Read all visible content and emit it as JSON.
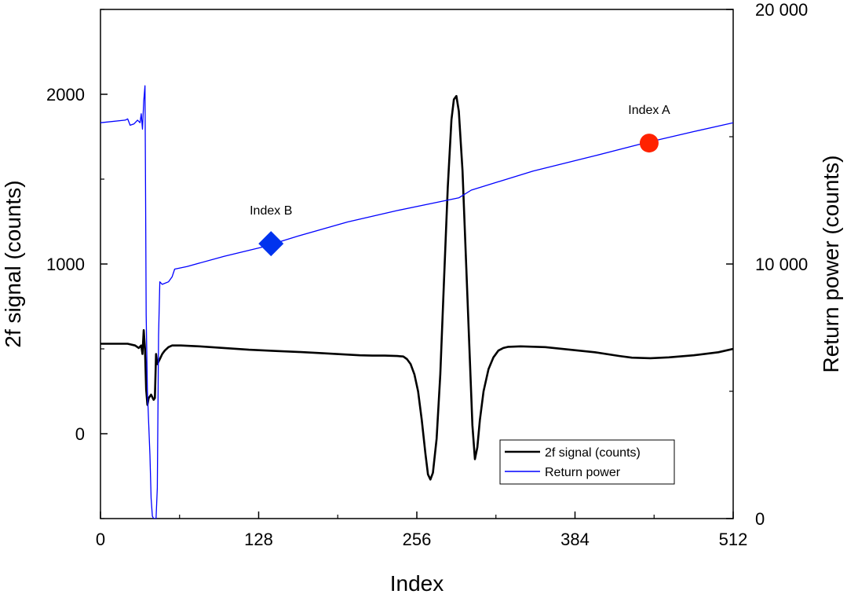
{
  "chart_data": {
    "type": "line",
    "xlabel": "Index",
    "ylabel_left": "2f signal (counts)",
    "ylabel_right": "Return power (counts)",
    "xlim": [
      0,
      512
    ],
    "ylim_left": [
      -500,
      2500
    ],
    "ylim_right": [
      0,
      20000
    ],
    "x_ticks": [
      0,
      128,
      256,
      384,
      512
    ],
    "x_tick_labels": [
      "0",
      "128",
      "256",
      "384",
      "512"
    ],
    "y_left_ticks": [
      0,
      1000,
      2000
    ],
    "y_left_tick_labels": [
      "0",
      "1000",
      "2000"
    ],
    "y_right_ticks": [
      0,
      10000,
      20000
    ],
    "y_right_tick_labels": [
      "0",
      "10 000",
      "20 000"
    ],
    "grid": false,
    "legend_position": "bottom-right",
    "series": [
      {
        "name": "2f signal (counts)",
        "axis": "left",
        "color": "#000000",
        "points": [
          [
            0,
            530
          ],
          [
            22,
            530
          ],
          [
            28,
            520
          ],
          [
            31,
            505
          ],
          [
            33,
            520
          ],
          [
            34,
            470
          ],
          [
            35,
            610
          ],
          [
            36,
            500
          ],
          [
            37,
            260
          ],
          [
            38,
            170
          ],
          [
            39,
            210
          ],
          [
            41,
            230
          ],
          [
            43,
            200
          ],
          [
            44,
            210
          ],
          [
            45,
            470
          ],
          [
            46,
            410
          ],
          [
            48,
            440
          ],
          [
            50,
            470
          ],
          [
            52,
            490
          ],
          [
            55,
            510
          ],
          [
            58,
            520
          ],
          [
            65,
            520
          ],
          [
            80,
            515
          ],
          [
            100,
            505
          ],
          [
            120,
            495
          ],
          [
            140,
            488
          ],
          [
            160,
            482
          ],
          [
            180,
            474
          ],
          [
            200,
            466
          ],
          [
            210,
            462
          ],
          [
            220,
            460
          ],
          [
            230,
            460
          ],
          [
            240,
            458
          ],
          [
            245,
            455
          ],
          [
            248,
            440
          ],
          [
            251,
            410
          ],
          [
            254,
            350
          ],
          [
            257,
            250
          ],
          [
            260,
            80
          ],
          [
            263,
            -120
          ],
          [
            265,
            -240
          ],
          [
            267,
            -270
          ],
          [
            269,
            -230
          ],
          [
            272,
            -30
          ],
          [
            275,
            350
          ],
          [
            278,
            900
          ],
          [
            281,
            1450
          ],
          [
            284,
            1850
          ],
          [
            286,
            1970
          ],
          [
            288,
            1990
          ],
          [
            290,
            1900
          ],
          [
            293,
            1550
          ],
          [
            296,
            980
          ],
          [
            299,
            420
          ],
          [
            301,
            50
          ],
          [
            303,
            -150
          ],
          [
            305,
            -80
          ],
          [
            307,
            80
          ],
          [
            310,
            250
          ],
          [
            314,
            380
          ],
          [
            318,
            450
          ],
          [
            322,
            490
          ],
          [
            326,
            505
          ],
          [
            330,
            512
          ],
          [
            340,
            515
          ],
          [
            360,
            510
          ],
          [
            380,
            495
          ],
          [
            400,
            480
          ],
          [
            420,
            458
          ],
          [
            430,
            448
          ],
          [
            445,
            445
          ],
          [
            460,
            450
          ],
          [
            480,
            462
          ],
          [
            500,
            480
          ],
          [
            512,
            500
          ]
        ]
      },
      {
        "name": "Return power",
        "axis": "right",
        "color": "#0000ff",
        "points": [
          [
            0,
            15550
          ],
          [
            20,
            15650
          ],
          [
            22,
            15700
          ],
          [
            24,
            15450
          ],
          [
            27,
            15500
          ],
          [
            30,
            15650
          ],
          [
            32,
            15550
          ],
          [
            33,
            15900
          ],
          [
            34,
            15300
          ],
          [
            35,
            16400
          ],
          [
            36,
            17000
          ],
          [
            36.5,
            12500
          ],
          [
            37,
            8000
          ],
          [
            38,
            5000
          ],
          [
            40,
            2500
          ],
          [
            41,
            800
          ],
          [
            42,
            100
          ],
          [
            43,
            0
          ],
          [
            45,
            0
          ],
          [
            46,
            1200
          ],
          [
            47,
            7200
          ],
          [
            48,
            9300
          ],
          [
            50,
            9200
          ],
          [
            55,
            9300
          ],
          [
            58,
            9500
          ],
          [
            60,
            9800
          ],
          [
            70,
            9900
          ],
          [
            100,
            10300
          ],
          [
            130,
            10650
          ],
          [
            140,
            10800
          ],
          [
            160,
            11100
          ],
          [
            200,
            11650
          ],
          [
            240,
            12100
          ],
          [
            265,
            12350
          ],
          [
            280,
            12500
          ],
          [
            290,
            12600
          ],
          [
            300,
            12900
          ],
          [
            350,
            13650
          ],
          [
            400,
            14250
          ],
          [
            440,
            14750
          ],
          [
            480,
            15200
          ],
          [
            512,
            15550
          ]
        ]
      }
    ],
    "markers": [
      {
        "label": "Index A",
        "x": 444,
        "y": 14750,
        "axis": "right",
        "shape": "circle",
        "color": "#ff2200"
      },
      {
        "label": "Index B",
        "x": 138,
        "y": 10800,
        "axis": "right",
        "shape": "diamond",
        "color": "#0033ee"
      }
    ]
  }
}
